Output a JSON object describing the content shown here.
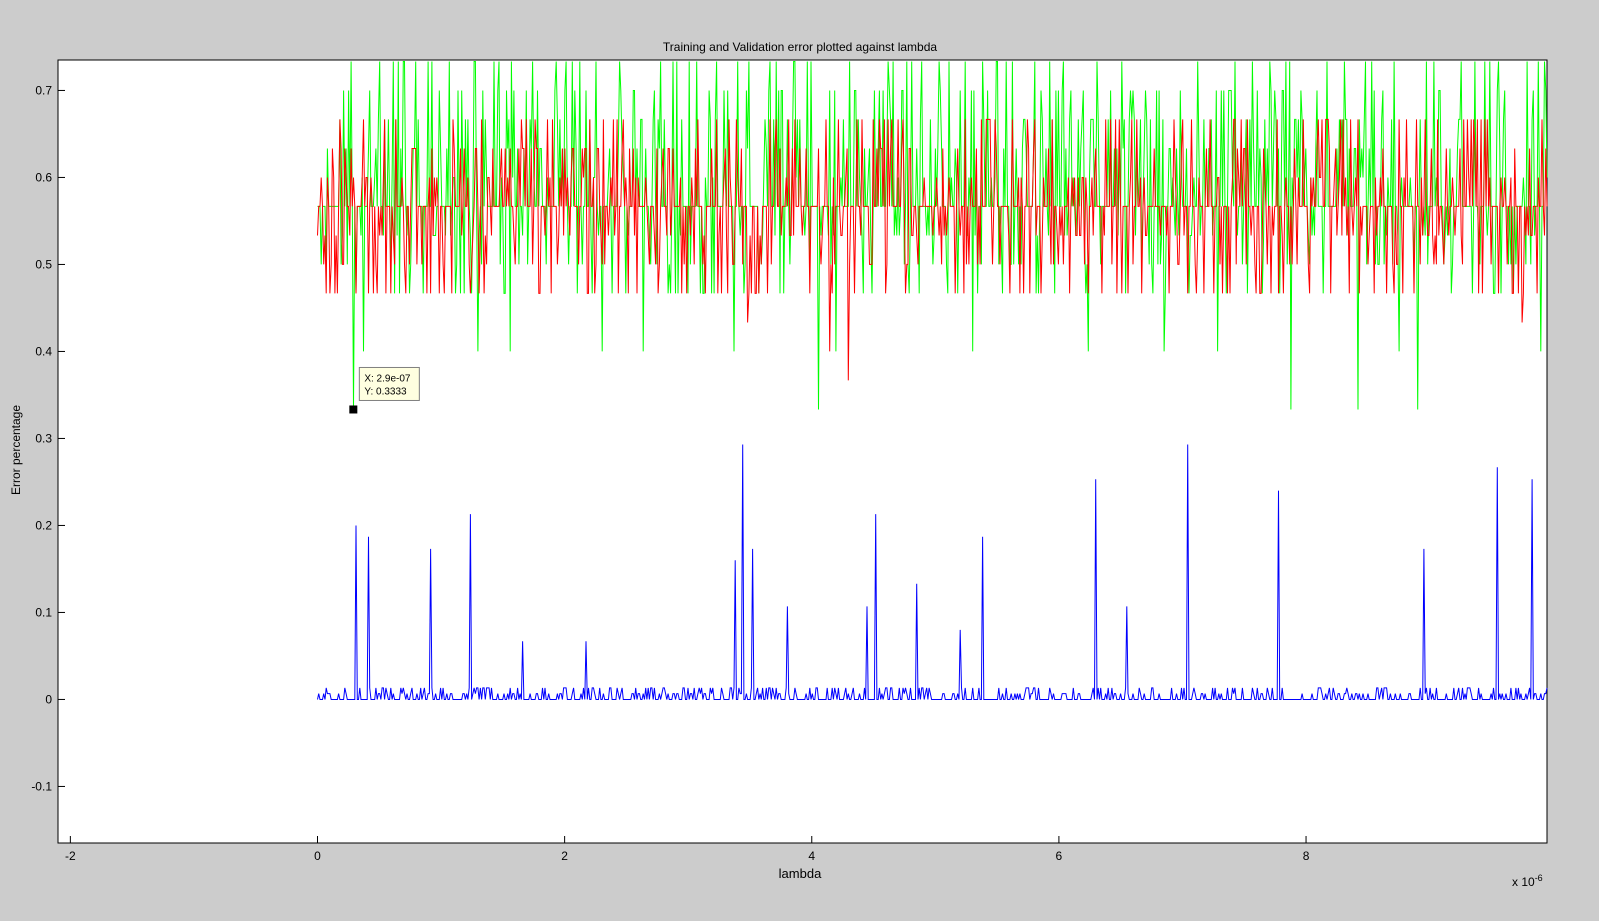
{
  "chart_data": {
    "type": "line",
    "title": "Training and Validation error plotted against lambda",
    "xlabel": "lambda",
    "ylabel": "Error percentage",
    "x_multiplier": "x 10",
    "x_multiplier_exp": "-6",
    "xlim": [
      -2.1e-06,
      9.95e-06
    ],
    "ylim": [
      -0.165,
      0.735
    ],
    "xticks": [
      {
        "value": -2e-06,
        "label": "-2"
      },
      {
        "value": 0,
        "label": "0"
      },
      {
        "value": 2e-06,
        "label": "2"
      },
      {
        "value": 4e-06,
        "label": "4"
      },
      {
        "value": 6e-06,
        "label": "6"
      },
      {
        "value": 8e-06,
        "label": "8"
      }
    ],
    "yticks": [
      {
        "value": -0.1,
        "label": "-0.1"
      },
      {
        "value": 0,
        "label": "0"
      },
      {
        "value": 0.1,
        "label": "0.1"
      },
      {
        "value": 0.2,
        "label": "0.2"
      },
      {
        "value": 0.3,
        "label": "0.3"
      },
      {
        "value": 0.4,
        "label": "0.4"
      },
      {
        "value": 0.5,
        "label": "0.5"
      },
      {
        "value": 0.6,
        "label": "0.6"
      },
      {
        "value": 0.7,
        "label": "0.7"
      }
    ],
    "x_range": [
      0,
      9.95e-06
    ],
    "series": [
      {
        "color": "#00ff00",
        "base": 0.5667,
        "levels": [
          0.4667,
          0.5,
          0.5333,
          0.5667,
          0.6,
          0.6333,
          0.6667,
          0.7,
          0.7333
        ],
        "dips": [
          {
            "x": 2.9e-07,
            "y": 0.3333
          },
          {
            "x": 4.05e-06,
            "y": 0.3333
          },
          {
            "x": 7.88e-06,
            "y": 0.3333
          },
          {
            "x": 8.42e-06,
            "y": 0.3333
          },
          {
            "x": 8.9e-06,
            "y": 0.3333
          },
          {
            "x": 3.7e-07,
            "y": 0.4
          },
          {
            "x": 1.3e-06,
            "y": 0.4
          },
          {
            "x": 1.56e-06,
            "y": 0.4
          },
          {
            "x": 2.3e-06,
            "y": 0.4
          },
          {
            "x": 2.64e-06,
            "y": 0.4
          },
          {
            "x": 3.37e-06,
            "y": 0.4
          },
          {
            "x": 4.2e-06,
            "y": 0.4
          },
          {
            "x": 5.3e-06,
            "y": 0.4
          },
          {
            "x": 6.24e-06,
            "y": 0.4
          },
          {
            "x": 6.85e-06,
            "y": 0.4
          },
          {
            "x": 7.28e-06,
            "y": 0.4
          },
          {
            "x": 8.75e-06,
            "y": 0.4
          },
          {
            "x": 9.9e-06,
            "y": 0.4
          }
        ]
      },
      {
        "color": "#ff0000",
        "base": 0.5667,
        "levels": [
          0.4667,
          0.5,
          0.5333,
          0.5667,
          0.6,
          0.6333,
          0.6667
        ],
        "dips": [
          {
            "x": 4.3e-06,
            "y": 0.3667
          },
          {
            "x": 4.15e-06,
            "y": 0.4
          },
          {
            "x": 3.48e-06,
            "y": 0.4333
          },
          {
            "x": 9.75e-06,
            "y": 0.4333
          }
        ]
      },
      {
        "color": "#0000ff",
        "base": 0,
        "levels": [
          0,
          0,
          0.0067,
          0.0133
        ],
        "spikes": [
          {
            "x": 3.15e-07,
            "y": 0.2
          },
          {
            "x": 4.1e-07,
            "y": 0.187
          },
          {
            "x": 9.2e-07,
            "y": 0.173
          },
          {
            "x": 1.24e-06,
            "y": 0.213
          },
          {
            "x": 1.66e-06,
            "y": 0.067
          },
          {
            "x": 2.17e-06,
            "y": 0.067
          },
          {
            "x": 3.38e-06,
            "y": 0.16
          },
          {
            "x": 3.44e-06,
            "y": 0.293
          },
          {
            "x": 3.52e-06,
            "y": 0.173
          },
          {
            "x": 3.8e-06,
            "y": 0.107
          },
          {
            "x": 4.45e-06,
            "y": 0.107
          },
          {
            "x": 4.52e-06,
            "y": 0.213
          },
          {
            "x": 4.85e-06,
            "y": 0.133
          },
          {
            "x": 5.2e-06,
            "y": 0.08
          },
          {
            "x": 5.38e-06,
            "y": 0.187
          },
          {
            "x": 6.3e-06,
            "y": 0.253
          },
          {
            "x": 6.55e-06,
            "y": 0.107
          },
          {
            "x": 7.04e-06,
            "y": 0.293
          },
          {
            "x": 7.78e-06,
            "y": 0.24
          },
          {
            "x": 8.95e-06,
            "y": 0.173
          },
          {
            "x": 9.55e-06,
            "y": 0.267
          },
          {
            "x": 9.83e-06,
            "y": 0.253
          }
        ]
      }
    ],
    "datatip": {
      "x": 2.9e-07,
      "y": 0.3333,
      "x_label": "X: 2.9e-07",
      "y_label": "Y: 0.3333"
    }
  }
}
